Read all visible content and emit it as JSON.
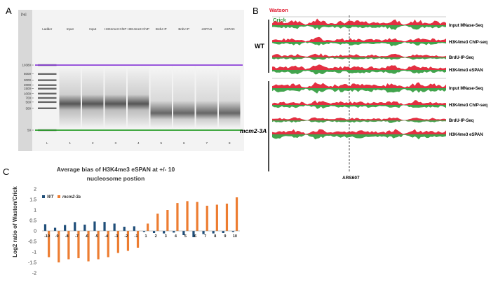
{
  "panels": {
    "A": "A",
    "B": "B",
    "C": "C"
  },
  "gel": {
    "unit": "[bp]",
    "lanes": [
      "Ladder",
      "Input",
      "Input",
      "H3K4me3 ChIP",
      "H3K4me3 ChIP",
      "BrdU IP",
      "BrdU IP",
      "eSPAN",
      "eSPAN"
    ],
    "lane_numbers": [
      "L",
      "1",
      "2",
      "3",
      "4",
      "5",
      "6",
      "7",
      "8"
    ],
    "size_labels": [
      "10380",
      "5000",
      "3000",
      "2000",
      "1500",
      "1000",
      "700",
      "500",
      "300",
      "50"
    ],
    "size_values": [
      10380,
      5000,
      3000,
      2000,
      1500,
      1000,
      700,
      500,
      300,
      50
    ]
  },
  "tracks": {
    "strand_labels": {
      "watson": "Watson",
      "crick": "Crick"
    },
    "groups": [
      {
        "name": "WT",
        "tracks": [
          "Input MNase-Seq",
          "H3K4me3 ChIP-seq",
          "BrdU-IP-Seq",
          "H3K4me3 eSPAN"
        ]
      },
      {
        "name": "mcm2-3A",
        "tracks": [
          "Input MNase-Seq",
          "H3K4me3 ChIP-seq",
          "BrdU-IP-Seq",
          "H3K4me3 eSPAN"
        ]
      }
    ],
    "origin_label": "ARS607",
    "colors": {
      "watson": "#e0192e",
      "crick": "#2e9a3a"
    }
  },
  "chart_data": {
    "type": "bar",
    "title": "Average bias of H3K4me3 eSPAN at +/- 10 nucleosome postion",
    "xlabel": "",
    "ylabel": "Log2 ratio of Waston/Crick",
    "x": [
      "-10",
      "-9",
      "-8",
      "-7",
      "-6",
      "-5",
      "-4",
      "-3",
      "-2",
      "-1",
      "1",
      "2",
      "3",
      "4",
      "5",
      "6",
      "7",
      "8",
      "9",
      "10"
    ],
    "ylim": [
      -2,
      2
    ],
    "yticks": [
      "2",
      "1.5",
      "1",
      "0.5",
      "0",
      "-0.5",
      "-1",
      "-1.5",
      "-2"
    ],
    "ytick_values": [
      2,
      1.5,
      1,
      0.5,
      0,
      -0.5,
      -1,
      -1.5,
      -2
    ],
    "legend_position": "top-left",
    "grid": false,
    "series": [
      {
        "name": "WT",
        "color": "#1f4e79",
        "values": [
          0.32,
          0.15,
          0.28,
          0.42,
          0.3,
          0.45,
          0.43,
          0.35,
          0.2,
          0.22,
          -0.05,
          -0.1,
          -0.12,
          -0.08,
          -0.2,
          -0.3,
          -0.15,
          -0.12,
          -0.1,
          -0.05
        ]
      },
      {
        "name": "mcm2-3a",
        "color": "#ed7d31",
        "values": [
          -1.25,
          -1.5,
          -1.35,
          -1.3,
          -1.45,
          -1.35,
          -1.25,
          -1.05,
          -0.95,
          -0.8,
          0.35,
          0.82,
          1.0,
          1.33,
          1.42,
          1.38,
          1.2,
          1.25,
          1.3,
          1.6
        ]
      }
    ]
  }
}
